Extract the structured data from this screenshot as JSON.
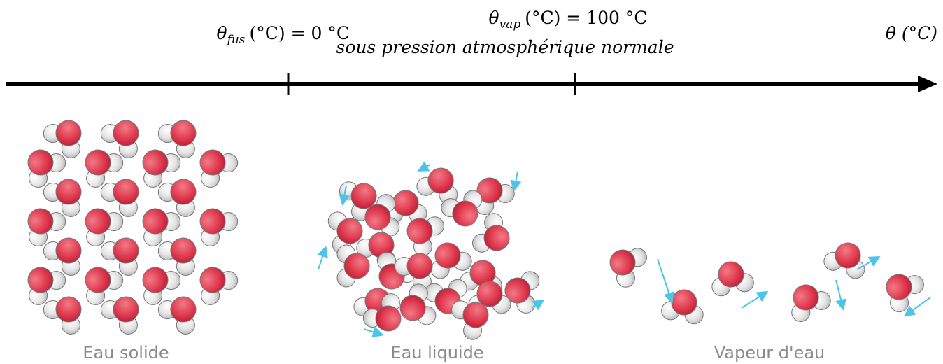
{
  "axis": {
    "fusion": {
      "symbol": "θ",
      "subscript": "fus",
      "text": "(°C) = 0 °C"
    },
    "vaporisation": {
      "symbol": "θ",
      "subscript": "vap",
      "text": "(°C) = 100 °C",
      "note": "sous pression atmosphérique normale"
    },
    "label": "θ (°C)"
  },
  "states": [
    "Eau solide",
    "Eau liquide",
    "Vapeur d'eau"
  ]
}
